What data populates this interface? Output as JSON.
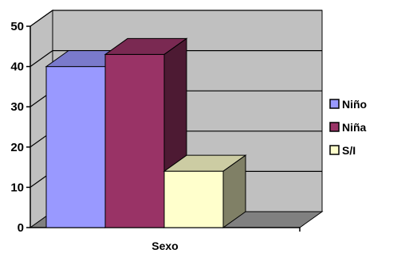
{
  "chart_data": {
    "type": "bar",
    "style": "3d-clustered-column",
    "categories": [
      "Sexo"
    ],
    "series": [
      {
        "name": "Niño",
        "values": [
          40
        ],
        "color": "#9999ff"
      },
      {
        "name": "Niña",
        "values": [
          43
        ],
        "color": "#993366"
      },
      {
        "name": "S/I",
        "values": [
          14
        ],
        "color": "#ffffcc"
      }
    ],
    "yticks": [
      "0",
      "10",
      "20",
      "30",
      "40",
      "50"
    ],
    "ylim": [
      0,
      50
    ],
    "grid": true,
    "legend_position": "right",
    "colors": {
      "wall": "#c0c0c0",
      "floor": "#808080",
      "gridline": "#000000"
    }
  }
}
